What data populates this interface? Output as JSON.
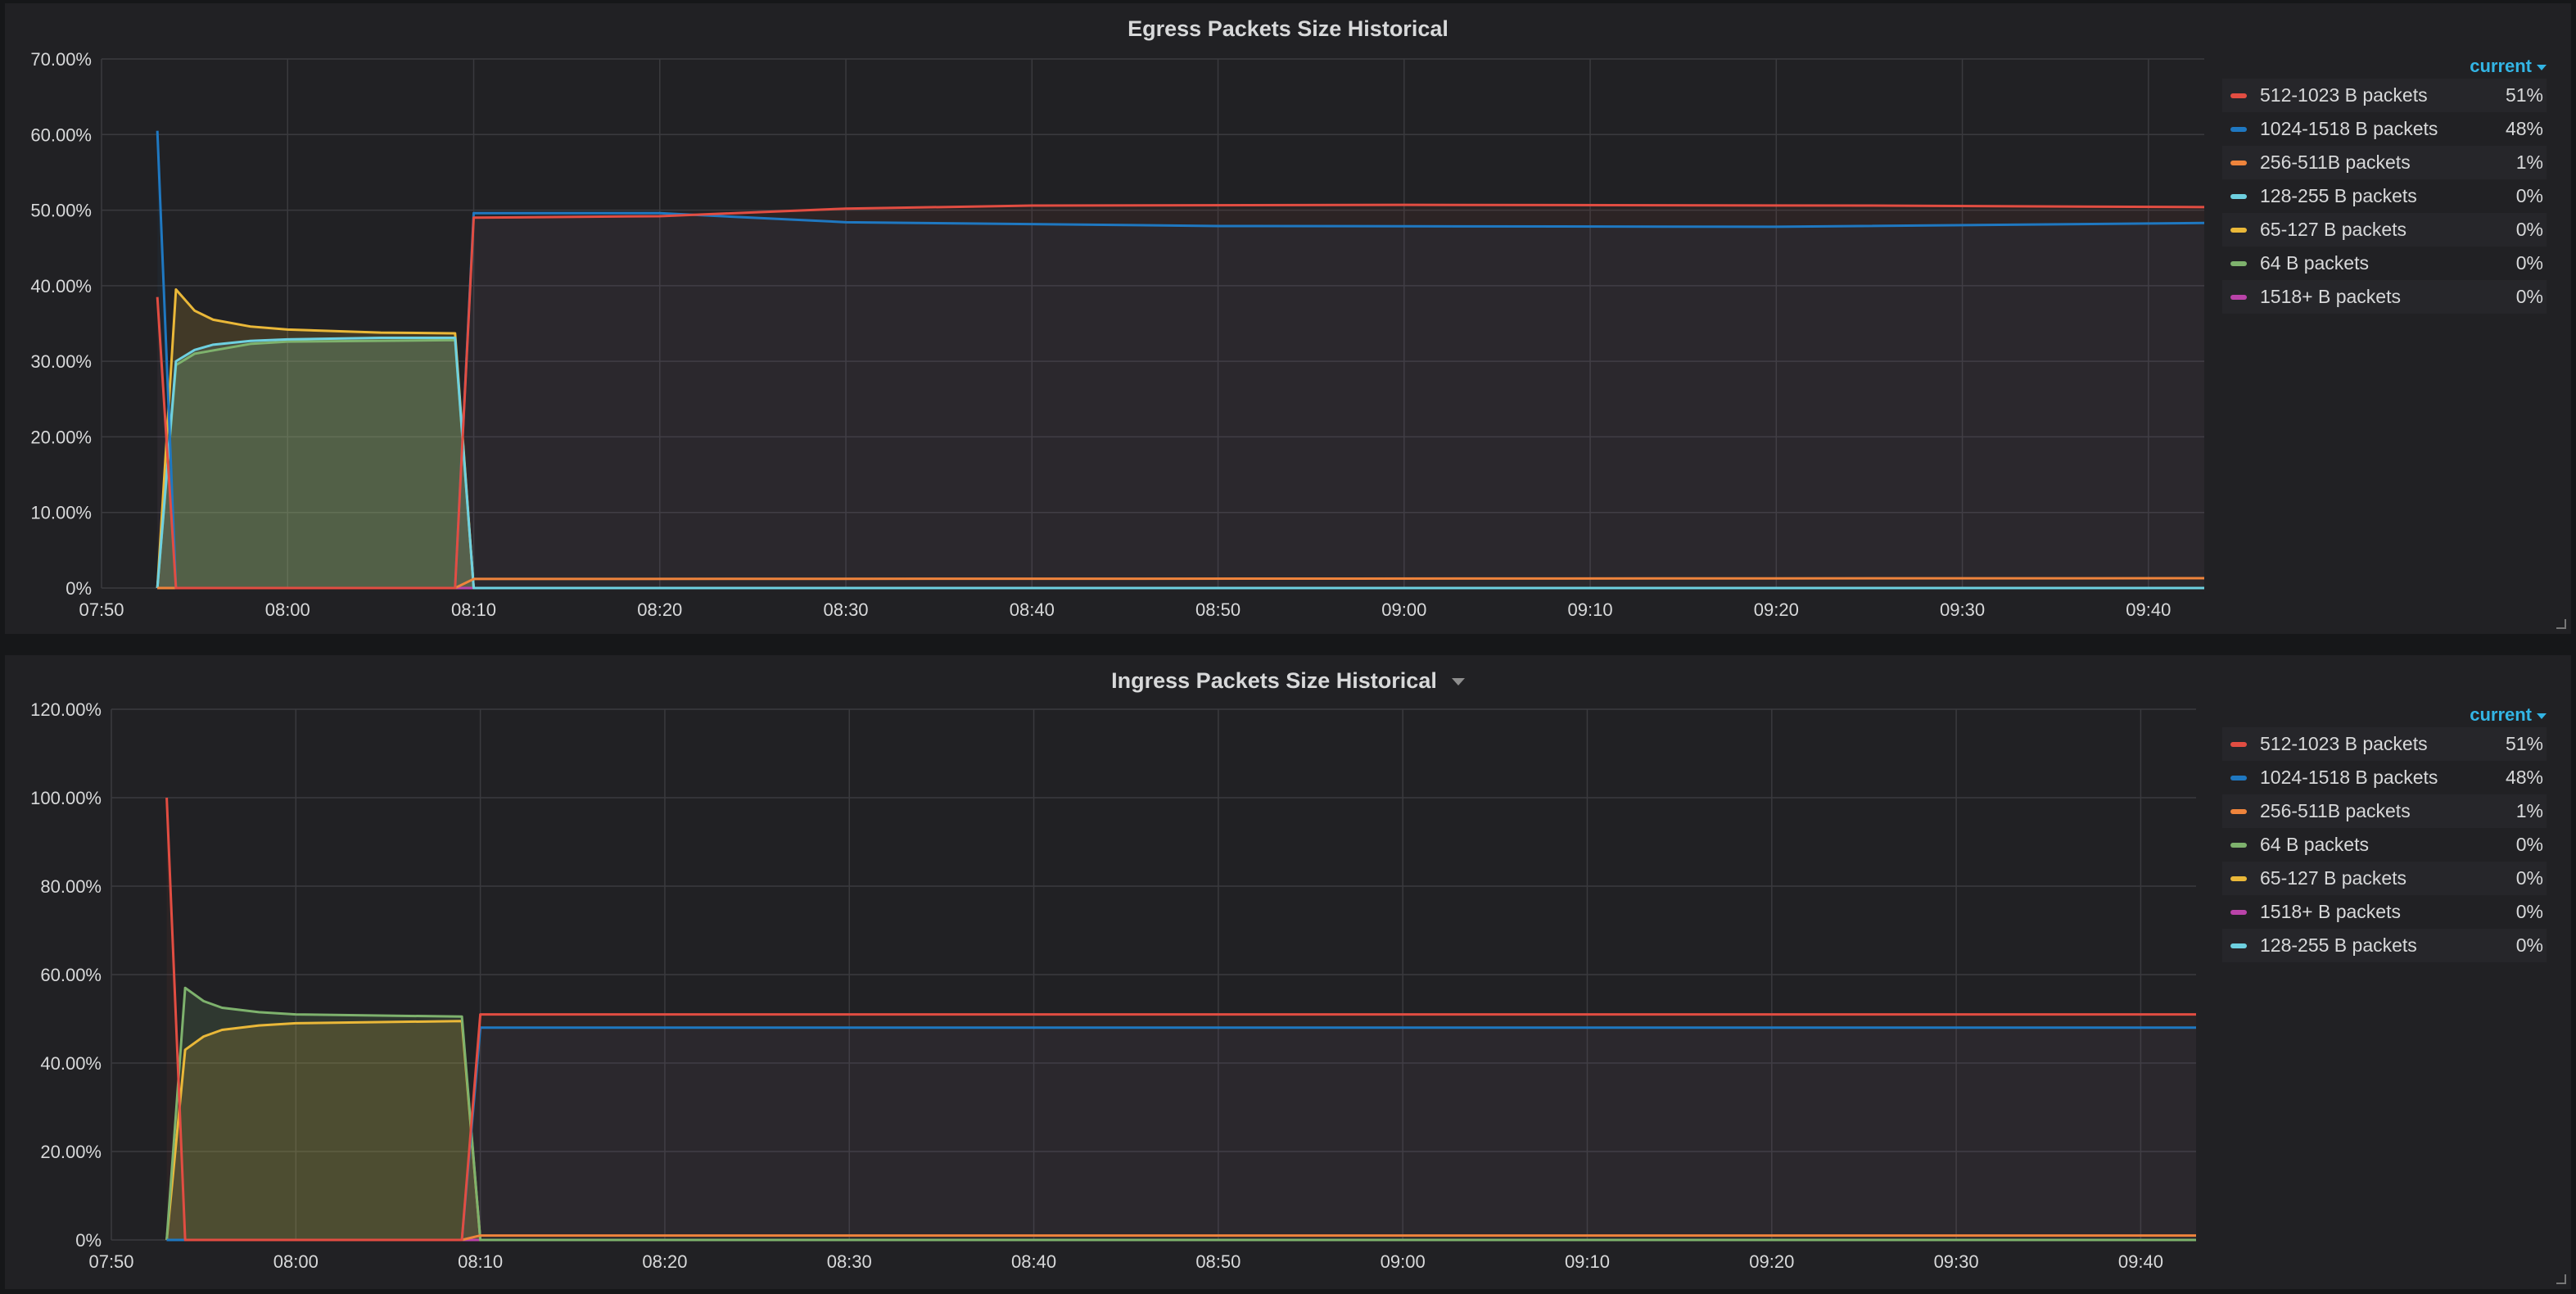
{
  "colors": {
    "panel_bg": "#212124",
    "grid": "#3a3a3e",
    "legend_header": "#33b5e5"
  },
  "panels": [
    {
      "id": "egress",
      "title": "Egress Packets Size Historical",
      "has_title_menu": false,
      "legend": {
        "header": "current",
        "items": [
          {
            "label": "512-1023 B packets",
            "value": "51%",
            "color": "#e24d42"
          },
          {
            "label": "1024-1518 B packets",
            "value": "48%",
            "color": "#1f78c1"
          },
          {
            "label": "256-511B packets",
            "value": "1%",
            "color": "#ef843c"
          },
          {
            "label": "128-255 B packets",
            "value": "0%",
            "color": "#6ed0e0"
          },
          {
            "label": "65-127 B packets",
            "value": "0%",
            "color": "#eab839"
          },
          {
            "label": "64 B packets",
            "value": "0%",
            "color": "#7eb26d"
          },
          {
            "label": "1518+ B packets",
            "value": "0%",
            "color": "#ba43a9"
          }
        ]
      },
      "chart_data": {
        "type": "area",
        "x_ticks": [
          "07:50",
          "08:00",
          "08:10",
          "08:20",
          "08:30",
          "08:40",
          "08:50",
          "09:00",
          "09:10",
          "09:20",
          "09:30",
          "09:40"
        ],
        "y_ticks": [
          "0%",
          "10.00%",
          "20.00%",
          "30.00%",
          "40.00%",
          "50.00%",
          "60.00%",
          "70.00%"
        ],
        "ylim": [
          0,
          70
        ],
        "xlim": [
          "07:50",
          "09:43"
        ],
        "grid": true,
        "legend_position": "right",
        "series": [
          {
            "name": "512-1023 B packets",
            "color": "#e24d42",
            "fill": false,
            "points": [
              [
                "07:53",
                38.5
              ],
              [
                "07:54",
                0
              ],
              [
                "08:09",
                0
              ],
              [
                "08:10",
                49
              ],
              [
                "08:20",
                49.2
              ],
              [
                "08:30",
                50.2
              ],
              [
                "08:40",
                50.6
              ],
              [
                "09:00",
                50.7
              ],
              [
                "09:25",
                50.6
              ],
              [
                "09:43",
                50.4
              ]
            ]
          },
          {
            "name": "1024-1518 B packets",
            "color": "#1f78c1",
            "fill": false,
            "points": [
              [
                "07:53",
                60.5
              ],
              [
                "07:54",
                0
              ],
              [
                "08:09",
                0
              ],
              [
                "08:10",
                49.6
              ],
              [
                "08:20",
                49.6
              ],
              [
                "08:30",
                48.4
              ],
              [
                "08:50",
                47.9
              ],
              [
                "09:20",
                47.8
              ],
              [
                "09:43",
                48.3
              ]
            ]
          },
          {
            "name": "256-511B packets",
            "color": "#ef843c",
            "fill": false,
            "points": [
              [
                "07:53",
                0
              ],
              [
                "08:09",
                0
              ],
              [
                "08:10",
                1.2
              ],
              [
                "09:43",
                1.3
              ]
            ]
          },
          {
            "name": "128-255 B packets",
            "color": "#6ed0e0",
            "fill": true,
            "points": [
              [
                "07:53",
                0
              ],
              [
                "07:54",
                30
              ],
              [
                "07:55",
                31.5
              ],
              [
                "07:56",
                32.2
              ],
              [
                "07:58",
                32.7
              ],
              [
                "08:00",
                32.9
              ],
              [
                "08:05",
                33.1
              ],
              [
                "08:09",
                33.1
              ],
              [
                "08:10",
                0
              ],
              [
                "09:43",
                0
              ]
            ]
          },
          {
            "name": "65-127 B packets",
            "color": "#eab839",
            "fill": true,
            "points": [
              [
                "07:53",
                0
              ],
              [
                "07:54",
                39.5
              ],
              [
                "07:55",
                36.7
              ],
              [
                "07:56",
                35.5
              ],
              [
                "07:58",
                34.6
              ],
              [
                "08:00",
                34.2
              ],
              [
                "08:05",
                33.8
              ],
              [
                "08:09",
                33.7
              ],
              [
                "08:10",
                0
              ],
              [
                "09:43",
                0
              ]
            ]
          },
          {
            "name": "64 B packets",
            "color": "#7eb26d",
            "fill": true,
            "points": [
              [
                "07:53",
                0
              ],
              [
                "07:54",
                29.5
              ],
              [
                "07:55",
                31.0
              ],
              [
                "07:58",
                32.3
              ],
              [
                "08:00",
                32.6
              ],
              [
                "08:09",
                32.8
              ],
              [
                "08:10",
                0
              ],
              [
                "09:43",
                0
              ]
            ]
          },
          {
            "name": "1518+ B packets",
            "color": "#ba43a9",
            "fill": false,
            "points": [
              [
                "07:53",
                0
              ],
              [
                "09:43",
                0
              ]
            ]
          }
        ]
      }
    },
    {
      "id": "ingress",
      "title": "Ingress Packets Size Historical",
      "has_title_menu": true,
      "legend": {
        "header": "current",
        "items": [
          {
            "label": "512-1023 B packets",
            "value": "51%",
            "color": "#e24d42"
          },
          {
            "label": "1024-1518 B packets",
            "value": "48%",
            "color": "#1f78c1"
          },
          {
            "label": "256-511B packets",
            "value": "1%",
            "color": "#ef843c"
          },
          {
            "label": "64 B packets",
            "value": "0%",
            "color": "#7eb26d"
          },
          {
            "label": "65-127 B packets",
            "value": "0%",
            "color": "#eab839"
          },
          {
            "label": "1518+ B packets",
            "value": "0%",
            "color": "#ba43a9"
          },
          {
            "label": "128-255 B packets",
            "value": "0%",
            "color": "#6ed0e0"
          }
        ]
      },
      "chart_data": {
        "type": "area",
        "x_ticks": [
          "07:50",
          "08:00",
          "08:10",
          "08:20",
          "08:30",
          "08:40",
          "08:50",
          "09:00",
          "09:10",
          "09:20",
          "09:30",
          "09:40"
        ],
        "y_ticks": [
          "0%",
          "20.00%",
          "40.00%",
          "60.00%",
          "80.00%",
          "100.00%",
          "120.00%"
        ],
        "ylim": [
          0,
          120
        ],
        "xlim": [
          "07:50",
          "09:43"
        ],
        "grid": true,
        "legend_position": "right",
        "series": [
          {
            "name": "512-1023 B packets",
            "color": "#e24d42",
            "fill": false,
            "points": [
              [
                "07:53",
                100
              ],
              [
                "07:54",
                0
              ],
              [
                "08:09",
                0
              ],
              [
                "08:10",
                51
              ],
              [
                "09:43",
                51
              ]
            ]
          },
          {
            "name": "1024-1518 B packets",
            "color": "#1f78c1",
            "fill": false,
            "points": [
              [
                "07:53",
                0
              ],
              [
                "08:09",
                0
              ],
              [
                "08:10",
                48
              ],
              [
                "09:43",
                48
              ]
            ]
          },
          {
            "name": "256-511B packets",
            "color": "#ef843c",
            "fill": false,
            "points": [
              [
                "07:53",
                0
              ],
              [
                "08:09",
                0
              ],
              [
                "08:10",
                1
              ],
              [
                "09:43",
                1
              ]
            ]
          },
          {
            "name": "64 B packets",
            "color": "#7eb26d",
            "fill": true,
            "points": [
              [
                "07:53",
                0
              ],
              [
                "07:54",
                57
              ],
              [
                "07:55",
                54
              ],
              [
                "07:56",
                52.5
              ],
              [
                "07:58",
                51.5
              ],
              [
                "08:00",
                51
              ],
              [
                "08:09",
                50.5
              ],
              [
                "08:10",
                0
              ],
              [
                "09:43",
                0
              ]
            ]
          },
          {
            "name": "65-127 B packets",
            "color": "#eab839",
            "fill": true,
            "points": [
              [
                "07:53",
                0
              ],
              [
                "07:54",
                43
              ],
              [
                "07:55",
                46
              ],
              [
                "07:56",
                47.5
              ],
              [
                "07:58",
                48.5
              ],
              [
                "08:00",
                49
              ],
              [
                "08:09",
                49.5
              ],
              [
                "08:10",
                0
              ],
              [
                "09:43",
                0
              ]
            ]
          },
          {
            "name": "1518+ B packets",
            "color": "#ba43a9",
            "fill": false,
            "points": [
              [
                "07:53",
                0
              ],
              [
                "09:43",
                0
              ]
            ]
          },
          {
            "name": "128-255 B packets",
            "color": "#6ed0e0",
            "fill": false,
            "points": [
              [
                "07:53",
                0
              ],
              [
                "09:43",
                0
              ]
            ]
          }
        ]
      }
    }
  ]
}
